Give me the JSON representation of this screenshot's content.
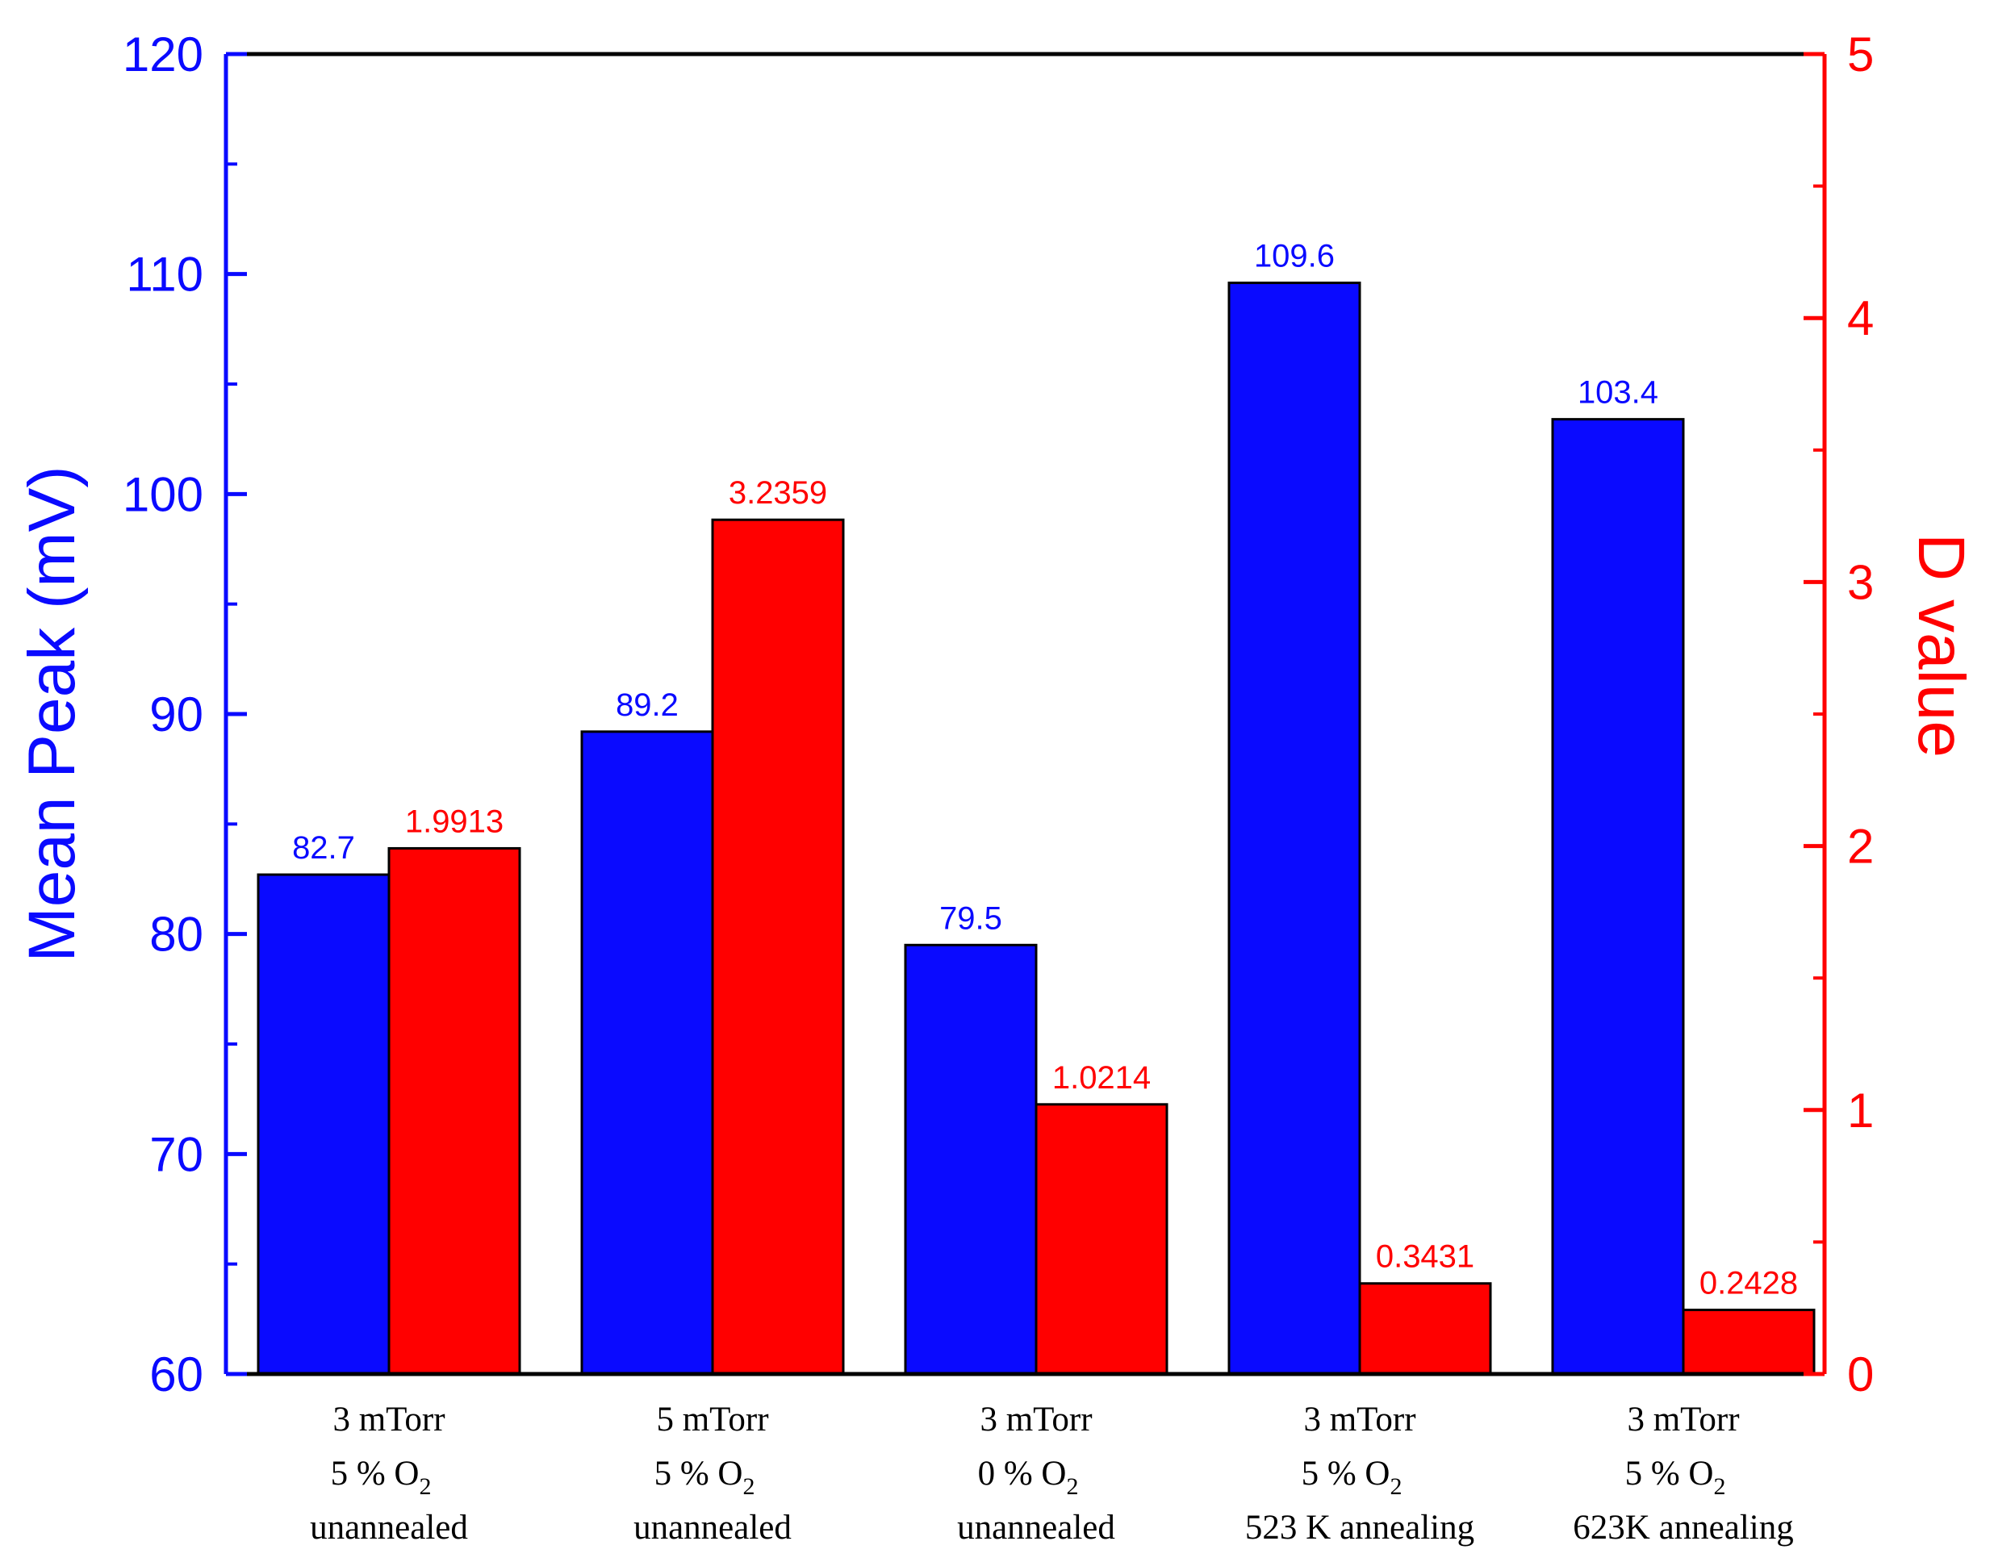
{
  "chart_data": {
    "type": "bar",
    "title": "",
    "xlabel": "",
    "ylabel": "Mean Peak (mV)",
    "y2label": "D value",
    "ylim": [
      60,
      120
    ],
    "y2lim": [
      0,
      5
    ],
    "yticks": [
      "60",
      "70",
      "80",
      "90",
      "100",
      "110",
      "120"
    ],
    "y2ticks": [
      "0",
      "1",
      "2",
      "3",
      "4",
      "5"
    ],
    "grid": false,
    "categories": [
      {
        "line1": "3 mTorr",
        "line2_pre": "5 % O",
        "line2_sub": "2",
        "line3": "unannealed"
      },
      {
        "line1": "5 mTorr",
        "line2_pre": "5 % O",
        "line2_sub": "2",
        "line3": "unannealed"
      },
      {
        "line1": "3 mTorr",
        "line2_pre": "0 % O",
        "line2_sub": "2",
        "line3": "unannealed"
      },
      {
        "line1": "3 mTorr",
        "line2_pre": "5 % O",
        "line2_sub": "2",
        "line3": "523 K annealing"
      },
      {
        "line1": "3 mTorr",
        "line2_pre": "5 % O",
        "line2_sub": "2",
        "line3": "623K annealing"
      }
    ],
    "series": [
      {
        "name": "Mean Peak (mV)",
        "axis": "left",
        "color": "#0a0aff",
        "values": [
          82.7,
          89.2,
          79.5,
          109.6,
          103.4
        ],
        "labels": [
          "82.7",
          "89.2",
          "79.5",
          "109.6",
          "103.4"
        ]
      },
      {
        "name": "D value",
        "axis": "right",
        "color": "#ff0000",
        "values": [
          1.9913,
          3.2359,
          1.0214,
          0.3431,
          0.2428
        ],
        "labels": [
          "1.9913",
          "3.2359",
          "1.0214",
          "0.3431",
          "0.2428"
        ]
      }
    ]
  },
  "colors": {
    "left_axis": "#0a0aff",
    "right_axis": "#ff0000",
    "frame": "#000000"
  }
}
